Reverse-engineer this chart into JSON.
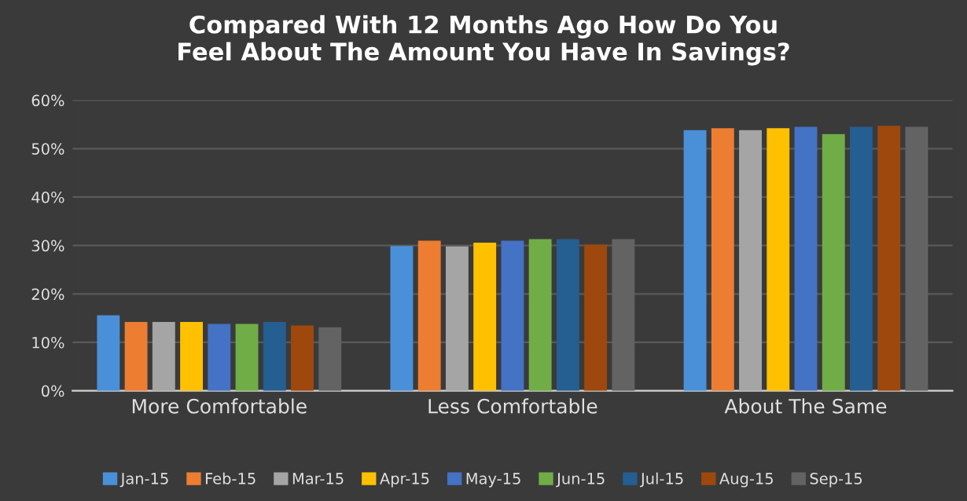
{
  "chart_data": {
    "type": "bar",
    "title": "Compared With 12 Months Ago How Do You\nFeel About The Amount You Have In Savings?",
    "categories": [
      "More Comfortable",
      "Less Comfortable",
      "About The Same"
    ],
    "series": [
      {
        "name": "Jan-15",
        "color": "#4a90d9",
        "values": [
          15.6,
          29.9,
          53.8
        ]
      },
      {
        "name": "Feb-15",
        "color": "#ed7d31",
        "values": [
          14.2,
          31.0,
          54.2
        ]
      },
      {
        "name": "Mar-15",
        "color": "#a5a5a5",
        "values": [
          14.2,
          29.8,
          53.8
        ]
      },
      {
        "name": "Apr-15",
        "color": "#ffc000",
        "values": [
          14.2,
          30.6,
          54.2
        ]
      },
      {
        "name": "May-15",
        "color": "#4472c4",
        "values": [
          13.8,
          31.0,
          54.5
        ]
      },
      {
        "name": "Jun-15",
        "color": "#70ad47",
        "values": [
          13.8,
          31.3,
          53.0
        ]
      },
      {
        "name": "Jul-15",
        "color": "#255e91",
        "values": [
          14.2,
          31.3,
          54.5
        ]
      },
      {
        "name": "Aug-15",
        "color": "#9e480e",
        "values": [
          13.5,
          30.2,
          54.7
        ]
      },
      {
        "name": "Sep-15",
        "color": "#636363",
        "values": [
          13.1,
          31.3,
          54.5
        ]
      }
    ],
    "ylim": [
      0,
      60
    ],
    "yticks": [
      {
        "value": 0,
        "label": "0%"
      },
      {
        "value": 10,
        "label": "10%"
      },
      {
        "value": 20,
        "label": "20%"
      },
      {
        "value": 30,
        "label": "30%"
      },
      {
        "value": 40,
        "label": "40%"
      },
      {
        "value": 50,
        "label": "50%"
      },
      {
        "value": 60,
        "label": "60%"
      }
    ],
    "grid": "y",
    "legend": "bottom"
  }
}
